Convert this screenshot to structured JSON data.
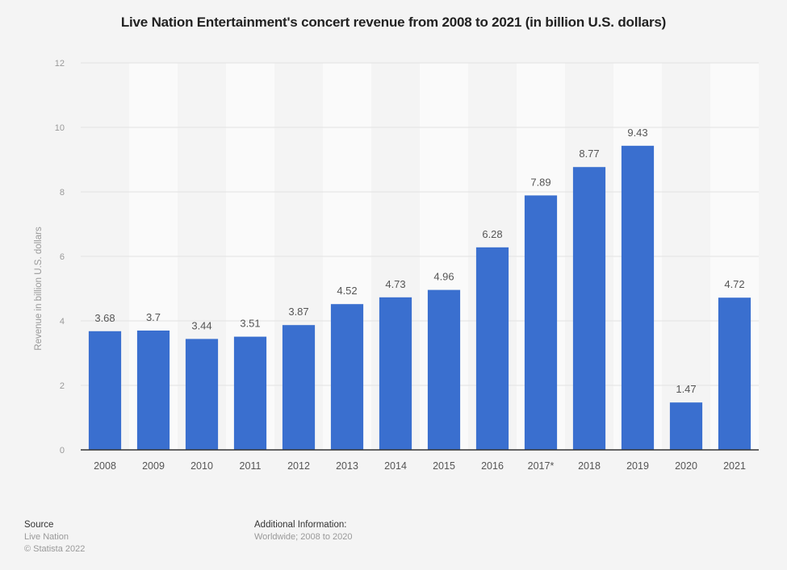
{
  "chart_data": {
    "type": "bar",
    "title": "Live Nation Entertainment's concert revenue from 2008 to 2021 (in billion U.S. dollars)",
    "xlabel": "",
    "ylabel": "Revenue in billion U.S. dollars",
    "categories": [
      "2008",
      "2009",
      "2010",
      "2011",
      "2012",
      "2013",
      "2014",
      "2015",
      "2016",
      "2017*",
      "2018",
      "2019",
      "2020",
      "2021"
    ],
    "values": [
      3.68,
      3.7,
      3.44,
      3.51,
      3.87,
      4.52,
      4.73,
      4.96,
      6.28,
      7.89,
      8.77,
      9.43,
      1.47,
      4.72
    ],
    "value_labels": [
      "3.68",
      "3.7",
      "3.44",
      "3.51",
      "3.87",
      "4.52",
      "4.73",
      "4.96",
      "6.28",
      "7.89",
      "8.77",
      "9.43",
      "1.47",
      "4.72"
    ],
    "ylim": [
      0,
      12
    ],
    "yticks": [
      0,
      2,
      4,
      6,
      8,
      10,
      12
    ],
    "grid": true,
    "legend": "none",
    "bar_color": "#3a6fcf"
  },
  "footer": {
    "source_heading": "Source",
    "source_name": "Live Nation",
    "copyright": "© Statista 2022",
    "additional_heading": "Additional Information:",
    "additional_text": "Worldwide; 2008 to 2020"
  }
}
